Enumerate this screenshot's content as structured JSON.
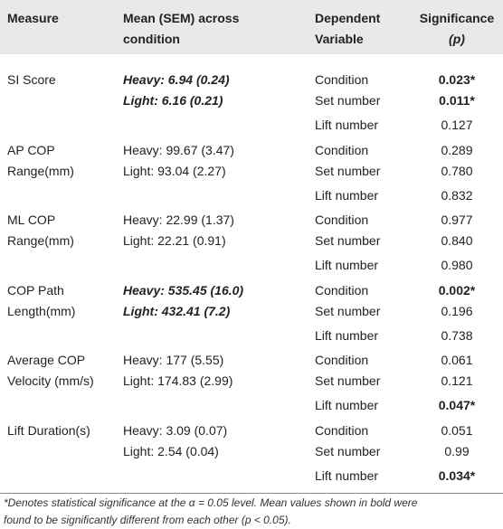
{
  "table": {
    "header": {
      "measure": [
        "Measure"
      ],
      "mean": [
        "Mean (SEM) across",
        "condition"
      ],
      "dependent": [
        "Dependent",
        "Variable"
      ],
      "significance": [
        "Significance",
        "(p)"
      ]
    },
    "rows": [
      {
        "measure": [
          "SI Score"
        ],
        "mean": [
          "Heavy: 6.94 (0.24)",
          "Light: 6.16 (0.21)"
        ],
        "mean_bold": true,
        "tests": [
          {
            "dependent": "Condition",
            "p": "0.023*",
            "bold": true
          },
          {
            "dependent": "Set number",
            "p": "0.011*",
            "bold": true
          },
          {
            "dependent": "Lift number",
            "p": "0.127",
            "bold": false
          }
        ]
      },
      {
        "measure": [
          "AP COP",
          "Range(mm)"
        ],
        "mean": [
          "Heavy: 99.67 (3.47)",
          "Light: 93.04 (2.27)"
        ],
        "mean_bold": false,
        "tests": [
          {
            "dependent": "Condition",
            "p": "0.289",
            "bold": false
          },
          {
            "dependent": "Set number",
            "p": "0.780",
            "bold": false
          },
          {
            "dependent": "Lift number",
            "p": "0.832",
            "bold": false
          }
        ]
      },
      {
        "measure": [
          "ML COP",
          "Range(mm)"
        ],
        "mean": [
          "Heavy: 22.99 (1.37)",
          "Light: 22.21 (0.91)"
        ],
        "mean_bold": false,
        "tests": [
          {
            "dependent": "Condition",
            "p": "0.977",
            "bold": false
          },
          {
            "dependent": "Set number",
            "p": "0.840",
            "bold": false
          },
          {
            "dependent": "Lift number",
            "p": "0.980",
            "bold": false
          }
        ]
      },
      {
        "measure": [
          "COP Path",
          "Length(mm)"
        ],
        "mean": [
          "Heavy: 535.45 (16.0)",
          "Light: 432.41 (7.2)"
        ],
        "mean_bold": true,
        "tests": [
          {
            "dependent": "Condition",
            "p": "0.002*",
            "bold": true
          },
          {
            "dependent": "Set number",
            "p": "0.196",
            "bold": false
          },
          {
            "dependent": "Lift number",
            "p": "0.738",
            "bold": false
          }
        ]
      },
      {
        "measure": [
          "Average COP",
          "Velocity (mm/s)"
        ],
        "mean": [
          "Heavy: 177 (5.55)",
          "Light: 174.83 (2.99)"
        ],
        "mean_bold": false,
        "tests": [
          {
            "dependent": "Condition",
            "p": "0.061",
            "bold": false
          },
          {
            "dependent": "Set number",
            "p": "0.121",
            "bold": false
          },
          {
            "dependent": "Lift number",
            "p": "0.047*",
            "bold": true
          }
        ]
      },
      {
        "measure": [
          "Lift Duration(s)"
        ],
        "mean": [
          "Heavy: 3.09 (0.07)",
          "Light: 2.54 (0.04)"
        ],
        "mean_bold": false,
        "tests": [
          {
            "dependent": "Condition",
            "p": "0.051",
            "bold": false
          },
          {
            "dependent": "Set number",
            "p": "0.99",
            "bold": false
          },
          {
            "dependent": "Lift number",
            "p": "0.034*",
            "bold": true
          }
        ]
      }
    ]
  },
  "footnote": [
    "*Denotes statistical significance at the α = 0.05 level. Mean values shown in bold were",
    "found to be significantly different from each other (p < 0.05)."
  ]
}
